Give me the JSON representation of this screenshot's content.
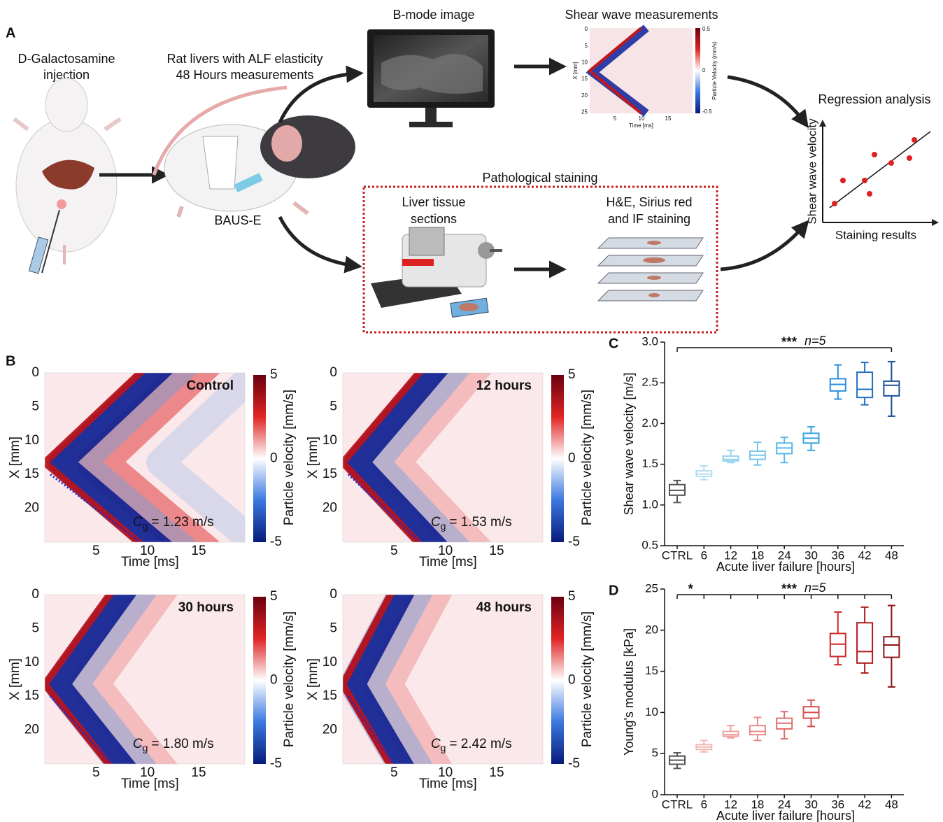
{
  "panel_a": {
    "label": "A",
    "injection": [
      "D-Galactosamine",
      "injection"
    ],
    "rat_title": [
      "Rat livers with ALF elasticity",
      "48 Hours measurements"
    ],
    "device": "BAUS-E",
    "bmode_title": "B-mode image",
    "shear_title": "Shear wave measurements",
    "shear_plot": {
      "y_label": "X [mm]",
      "x_label": "Time [ms]",
      "cbar_label": "Particle Velocity (mm/s)",
      "yticks": [
        0,
        5,
        10,
        15,
        20,
        25
      ],
      "xticks": [
        5,
        10,
        15
      ],
      "cticks": [
        0.5,
        0,
        -0.5
      ]
    },
    "regression_title": "Regression analysis",
    "regression_y": "Shear wave velocity",
    "regression_x": "Staining results",
    "staining_title": "Pathological staining",
    "sections": [
      "Liver tissue",
      "sections"
    ],
    "staining": [
      "H&E, Sirius red",
      "and IF staining"
    ]
  },
  "panel_b": {
    "label": "B",
    "y_label": "X [mm]",
    "x_label": "Time [ms]",
    "cbar_label": "Particle velocity [mm/s]",
    "xlim": [
      0,
      19.5
    ],
    "ylim": [
      0,
      25
    ],
    "xticks": [
      5,
      10,
      15
    ],
    "yticks": [
      0,
      5,
      10,
      15,
      20
    ],
    "clim": [
      -5,
      5
    ],
    "cticks": [
      5,
      0,
      -5
    ],
    "plots": [
      {
        "title": "Control",
        "cg_symbol": "C",
        "cg_sub": "g",
        "cg_text": "= 1.23 m/s"
      },
      {
        "title": "12 hours",
        "cg_symbol": "C",
        "cg_sub": "g",
        "cg_text": "= 1.53 m/s"
      },
      {
        "title": "30 hours",
        "cg_symbol": "C",
        "cg_sub": "g",
        "cg_text": "= 1.80 m/s"
      },
      {
        "title": "48 hours",
        "cg_symbol": "C",
        "cg_sub": "g",
        "cg_text": "= 2.42 m/s"
      }
    ]
  },
  "chart_data": [
    {
      "type": "box",
      "label": "C",
      "y_label": "Shear wave velocity [m/s]",
      "x_label": "Acute liver failure [hours]",
      "categories": [
        "CTRL",
        "6",
        "12",
        "18",
        "24",
        "30",
        "36",
        "42",
        "48"
      ],
      "ylim": [
        0.5,
        3.0
      ],
      "yticks": [
        0.5,
        {
          "value": 1,
          "label": "1.0"
        },
        1.5,
        {
          "value": 2,
          "label": "2.0"
        },
        2.5,
        {
          "value": 3,
          "label": "3.0"
        }
      ],
      "boxes": [
        {
          "min": 1.03,
          "q1": 1.12,
          "median": 1.18,
          "q3": 1.25,
          "max": 1.3
        },
        {
          "min": 1.31,
          "q1": 1.35,
          "median": 1.38,
          "q3": 1.42,
          "max": 1.48
        },
        {
          "min": 1.52,
          "q1": 1.54,
          "median": 1.56,
          "q3": 1.6,
          "max": 1.67
        },
        {
          "min": 1.49,
          "q1": 1.56,
          "median": 1.61,
          "q3": 1.66,
          "max": 1.77
        },
        {
          "min": 1.52,
          "q1": 1.63,
          "median": 1.7,
          "q3": 1.76,
          "max": 1.83
        },
        {
          "min": 1.67,
          "q1": 1.76,
          "median": 1.82,
          "q3": 1.88,
          "max": 1.96
        },
        {
          "min": 2.3,
          "q1": 2.4,
          "median": 2.48,
          "q3": 2.55,
          "max": 2.72
        },
        {
          "min": 2.23,
          "q1": 2.32,
          "median": 2.42,
          "q3": 2.63,
          "max": 2.75
        },
        {
          "min": 2.09,
          "q1": 2.34,
          "median": 2.47,
          "q3": 2.52,
          "max": 2.76
        }
      ],
      "colors": [
        "#555555",
        "#b5def0",
        "#95d3ee",
        "#78c6ea",
        "#58b8e6",
        "#36a4e0",
        "#2a8ee0",
        "#1f6fc8",
        "#1a4f9c"
      ],
      "annotations": [
        "***",
        "n=5"
      ]
    },
    {
      "type": "box",
      "label": "D",
      "y_label": "Young's modulus [kPa]",
      "x_label": "Acute liver failure [hours]",
      "categories": [
        "CTRL",
        "6",
        "12",
        "18",
        "24",
        "30",
        "36",
        "42",
        "48"
      ],
      "ylim": [
        0,
        25
      ],
      "yticks": [
        0,
        5,
        10,
        15,
        20,
        25
      ],
      "boxes": [
        {
          "min": 3.2,
          "q1": 3.7,
          "median": 4.2,
          "q3": 4.7,
          "max": 5.1
        },
        {
          "min": 5.2,
          "q1": 5.5,
          "median": 5.8,
          "q3": 6.1,
          "max": 6.6
        },
        {
          "min": 6.9,
          "q1": 7.1,
          "median": 7.3,
          "q3": 7.7,
          "max": 8.4
        },
        {
          "min": 6.6,
          "q1": 7.3,
          "median": 7.7,
          "q3": 8.4,
          "max": 9.4
        },
        {
          "min": 6.8,
          "q1": 8,
          "median": 8.7,
          "q3": 9.3,
          "max": 10.1
        },
        {
          "min": 8.3,
          "q1": 9.3,
          "median": 10,
          "q3": 10.7,
          "max": 11.5
        },
        {
          "min": 15.8,
          "q1": 16.8,
          "median": 18.3,
          "q3": 19.6,
          "max": 22.2
        },
        {
          "min": 14.8,
          "q1": 16,
          "median": 17.4,
          "q3": 20.9,
          "max": 22.8
        },
        {
          "min": 13.1,
          "q1": 16.7,
          "median": 18.2,
          "q3": 19.2,
          "max": 23
        }
      ],
      "colors": [
        "#555555",
        "#f5b8b8",
        "#f0a0a0",
        "#e98888",
        "#e06e6e",
        "#d64e4e",
        "#cc2a2a",
        "#b01c1c",
        "#8c1414"
      ],
      "annotations": [
        "*",
        "***",
        "n=5"
      ]
    }
  ]
}
